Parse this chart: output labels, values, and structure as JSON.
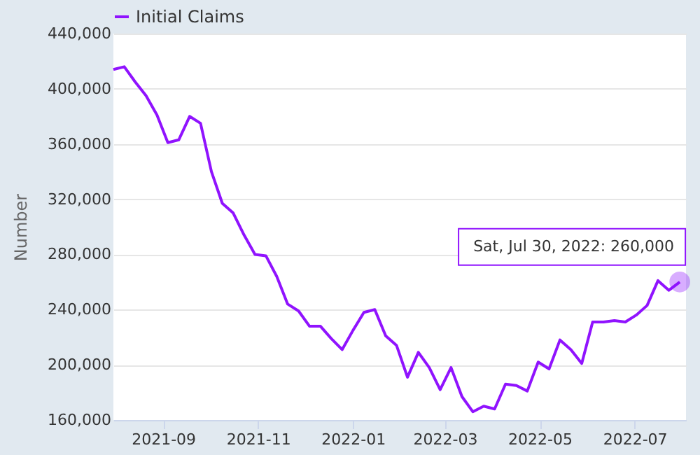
{
  "chart_data": {
    "type": "line",
    "ylabel": "Number",
    "x": [
      "2021-07-31",
      "2021-08-07",
      "2021-08-14",
      "2021-08-21",
      "2021-08-28",
      "2021-09-04",
      "2021-09-11",
      "2021-09-18",
      "2021-09-25",
      "2021-10-02",
      "2021-10-09",
      "2021-10-16",
      "2021-10-23",
      "2021-10-30",
      "2021-11-06",
      "2021-11-13",
      "2021-11-20",
      "2021-11-27",
      "2021-12-04",
      "2021-12-11",
      "2021-12-18",
      "2021-12-25",
      "2022-01-01",
      "2022-01-08",
      "2022-01-15",
      "2022-01-22",
      "2022-01-29",
      "2022-02-05",
      "2022-02-12",
      "2022-02-19",
      "2022-02-26",
      "2022-03-05",
      "2022-03-12",
      "2022-03-19",
      "2022-03-26",
      "2022-04-02",
      "2022-04-09",
      "2022-04-16",
      "2022-04-23",
      "2022-04-30",
      "2022-05-07",
      "2022-05-14",
      "2022-05-21",
      "2022-05-28",
      "2022-06-04",
      "2022-06-11",
      "2022-06-18",
      "2022-06-25",
      "2022-07-02",
      "2022-07-09",
      "2022-07-16",
      "2022-07-23",
      "2022-07-30"
    ],
    "series": [
      {
        "name": "Initial Claims",
        "color": "#9013fe",
        "values": [
          414000,
          416000,
          405000,
          395000,
          381000,
          361000,
          363000,
          380000,
          375000,
          340000,
          317000,
          310000,
          294000,
          280000,
          279000,
          264000,
          244000,
          239000,
          228000,
          228000,
          219000,
          211000,
          225000,
          238000,
          240000,
          221000,
          214000,
          191000,
          209000,
          198000,
          182000,
          198000,
          177000,
          166000,
          170000,
          168000,
          186000,
          185000,
          181000,
          202000,
          197000,
          218000,
          211000,
          201000,
          231000,
          231000,
          232000,
          231000,
          236000,
          243000,
          261000,
          254000,
          260000
        ]
      }
    ],
    "xlim": [
      "2021-07-31",
      "2022-08-03"
    ],
    "xticks": [
      "2021-09",
      "2021-11",
      "2022-01",
      "2022-03",
      "2022-05",
      "2022-07"
    ],
    "ylim": [
      160000,
      440000
    ],
    "yticks": [
      {
        "value": 160000,
        "label": "160,000"
      },
      {
        "value": 200000,
        "label": "200,000"
      },
      {
        "value": 240000,
        "label": "240,000"
      },
      {
        "value": 280000,
        "label": "280,000"
      },
      {
        "value": 320000,
        "label": "320,000"
      },
      {
        "value": 360000,
        "label": "360,000"
      },
      {
        "value": 400000,
        "label": "400,000"
      },
      {
        "value": 440000,
        "label": "440,000"
      }
    ],
    "grid": "y",
    "legend": "top left",
    "line_style": "solid",
    "marker": "none",
    "annotations": [
      {
        "text": "Sat, Jul 30, 2022: 260,000",
        "x": "2022-07-30",
        "y": 260000
      }
    ]
  }
}
